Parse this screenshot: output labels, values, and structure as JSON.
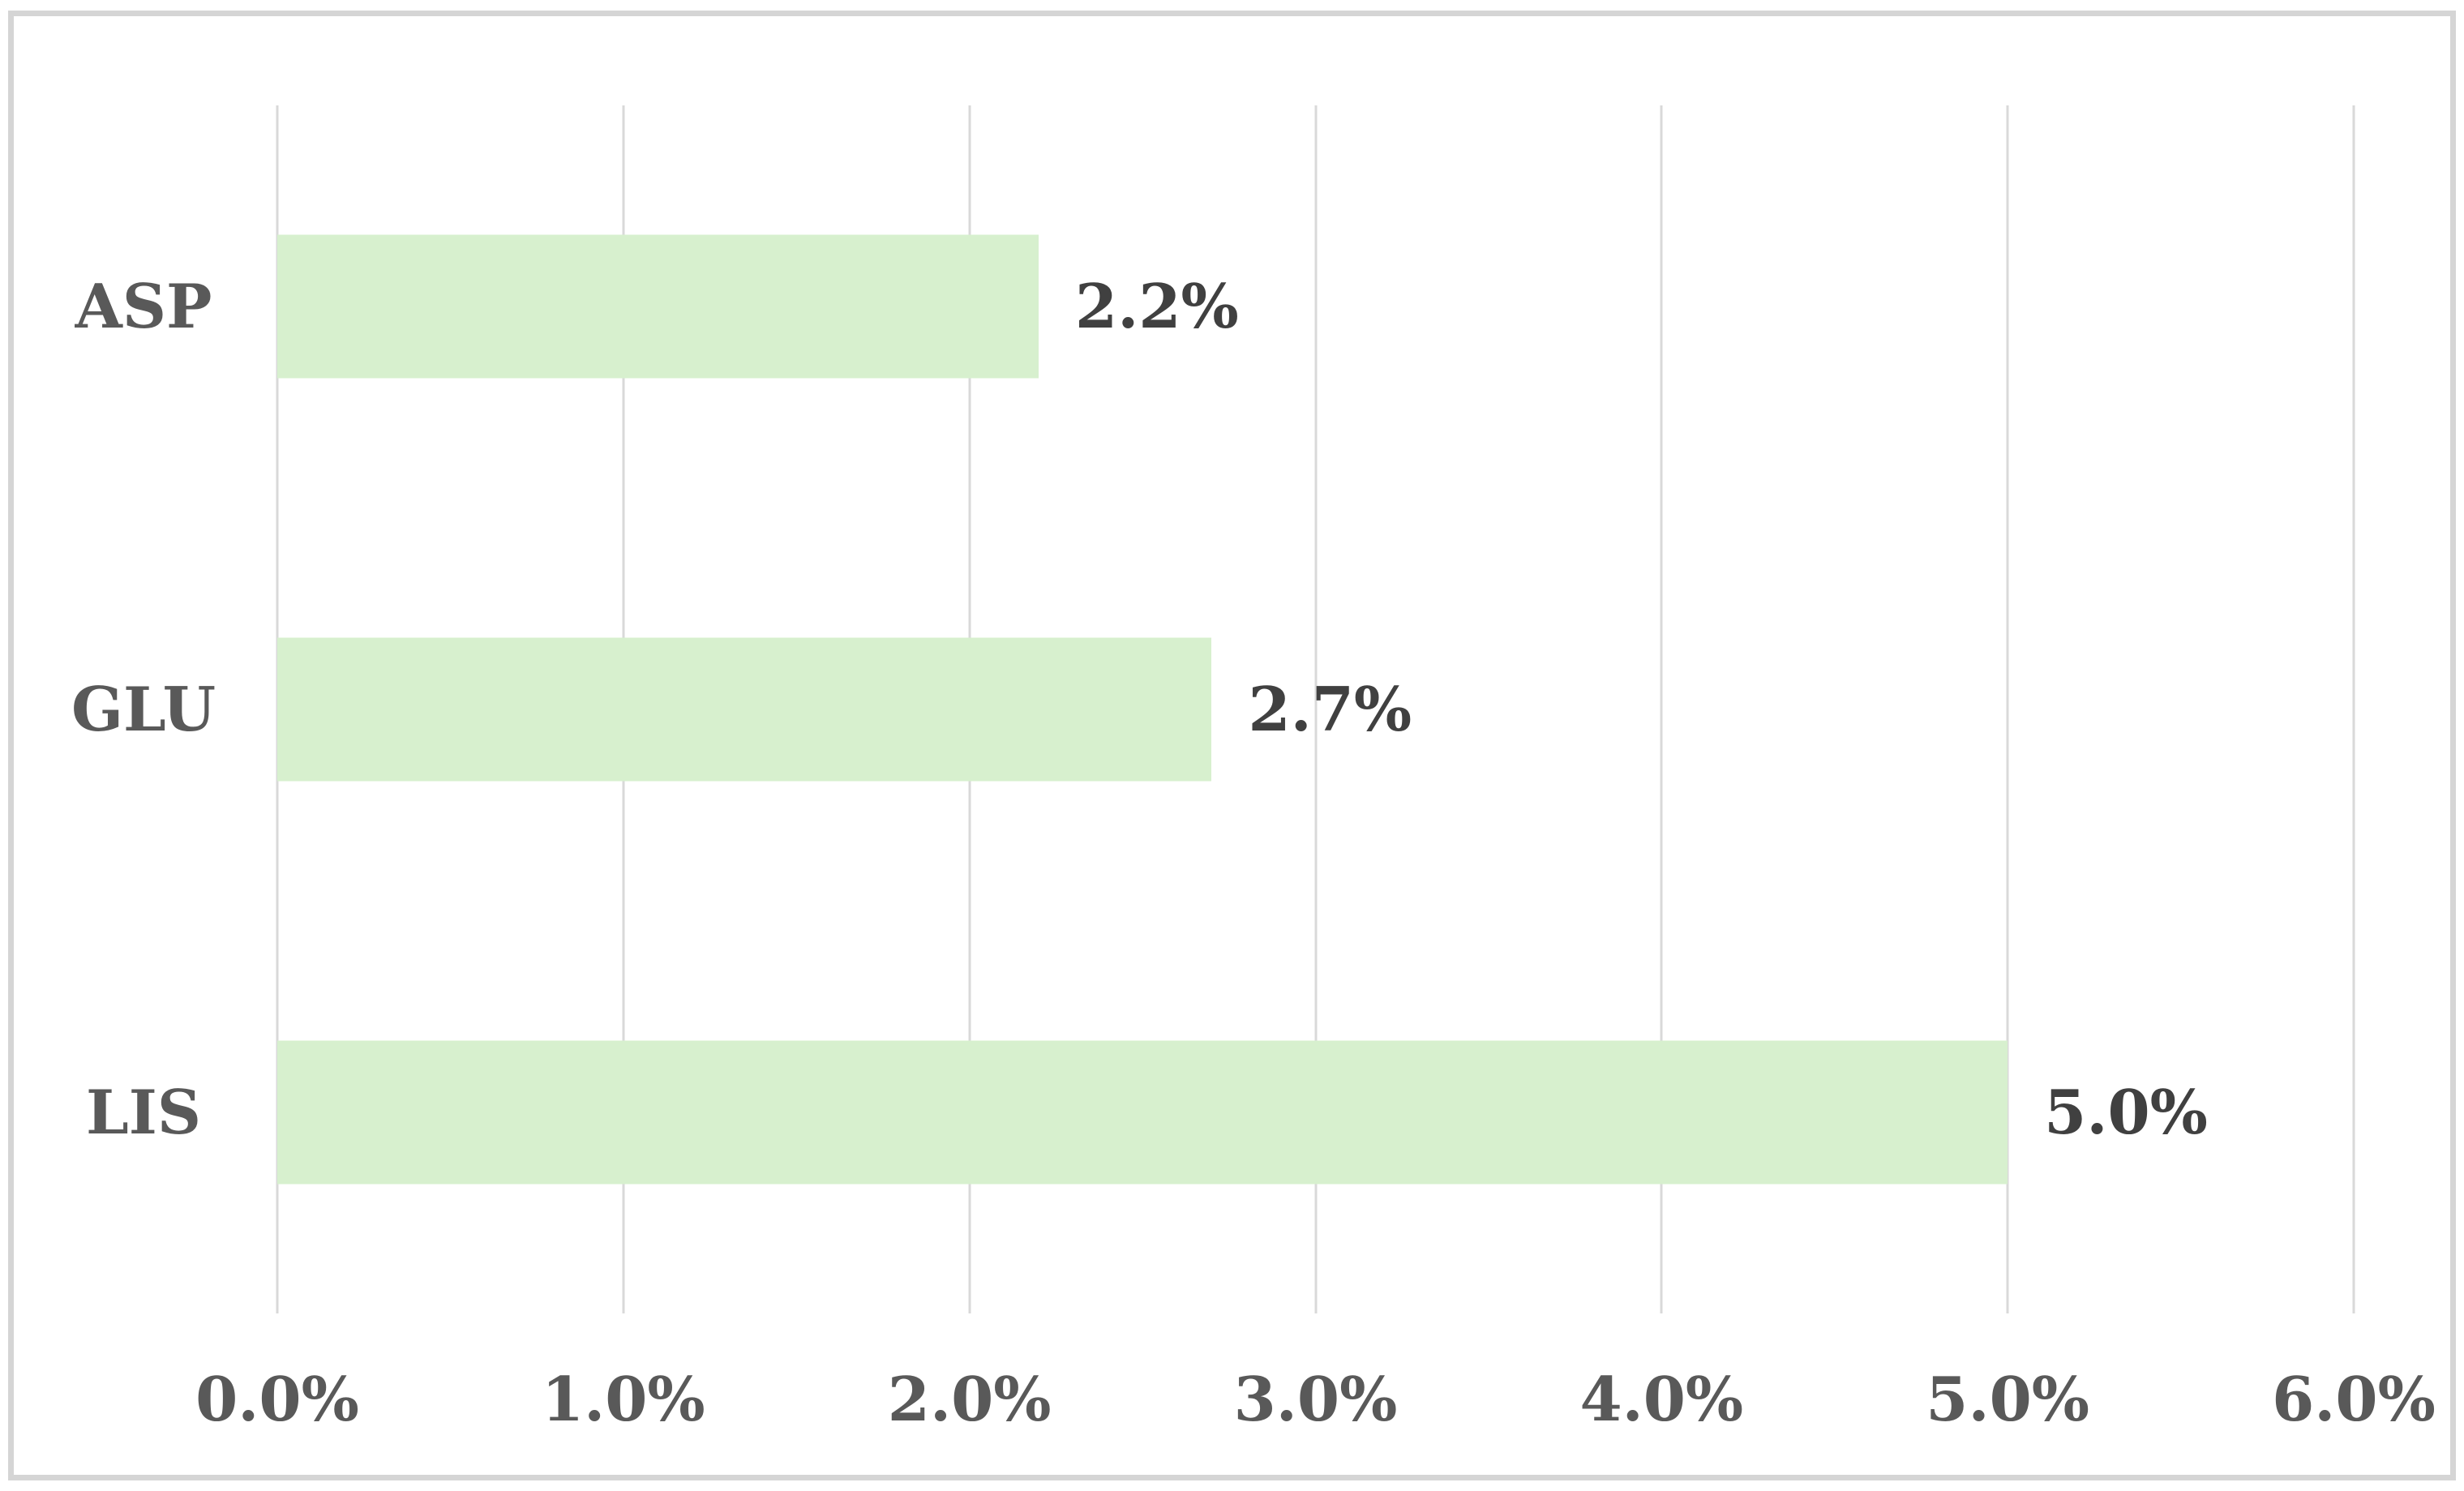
{
  "chart_data": {
    "type": "bar",
    "orientation": "horizontal",
    "title": "",
    "xlabel": "",
    "ylabel": "",
    "categories": [
      "ASP",
      "GLU",
      "LIS"
    ],
    "values": [
      2.2,
      2.7,
      5.0
    ],
    "data_labels": [
      "2.2%",
      "2.7%",
      "5.0%"
    ],
    "x_ticks": [
      "0.0%",
      "1.0%",
      "2.0%",
      "3.0%",
      "4.0%",
      "5.0%",
      "6.0%"
    ],
    "xlim": [
      0,
      6
    ],
    "grid": "vertical-only",
    "legend": "none",
    "colors": {
      "bar_fill": "#d7f0ce",
      "gridline": "#d9d9d9",
      "frame_border": "#d5d5d5",
      "category_text": "#595959",
      "tick_text": "#595959",
      "data_label_text": "#404040",
      "background": "#ffffff"
    }
  }
}
